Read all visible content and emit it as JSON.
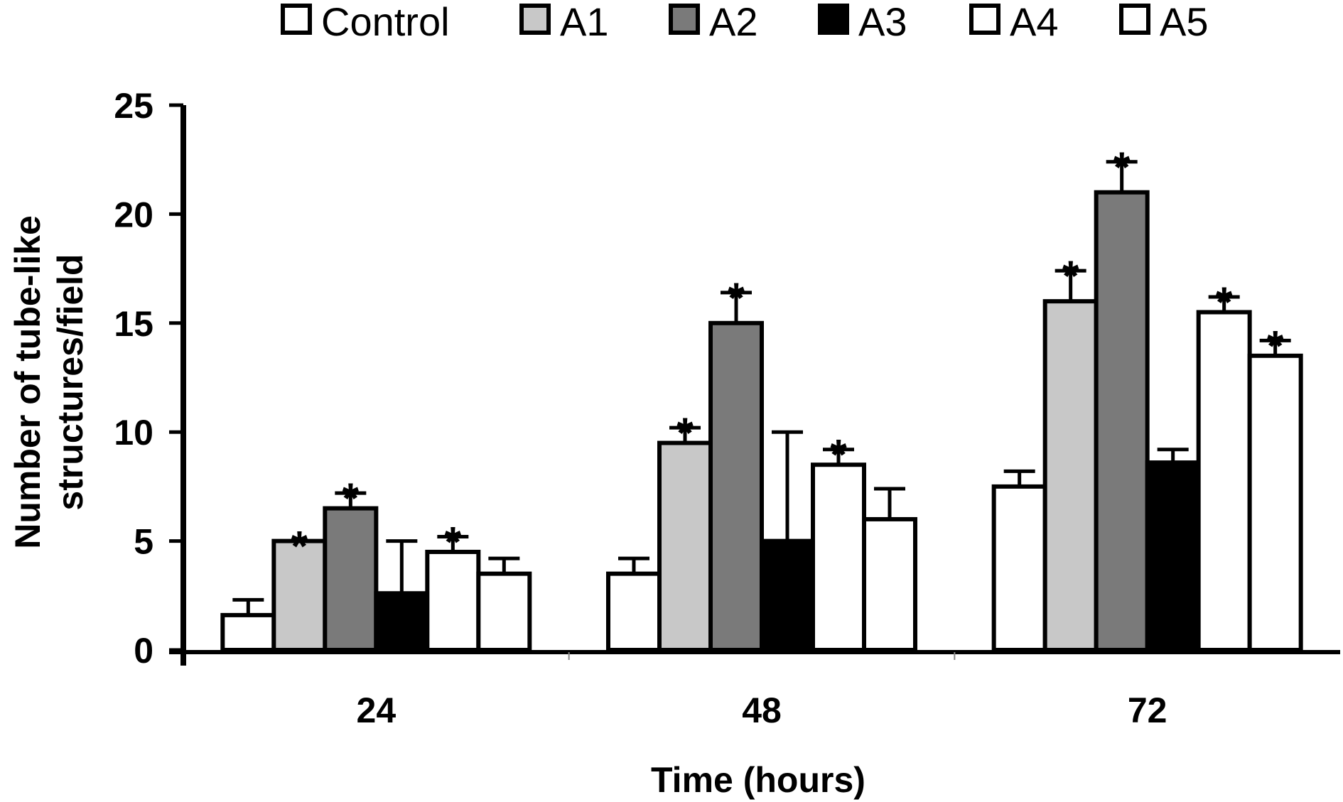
{
  "chart_data": {
    "type": "bar",
    "xlabel": "Time (hours)",
    "ylabel_lines": [
      "Number of tube-like",
      "structures/field"
    ],
    "categories": [
      "24",
      "48",
      "72"
    ],
    "ylim": [
      0,
      25
    ],
    "yticks": [
      0,
      5,
      10,
      15,
      20,
      25
    ],
    "legend_position": "top",
    "series": [
      {
        "name": "Control",
        "color": "#ffffff",
        "values": [
          1.6,
          3.5,
          7.5
        ],
        "errors": [
          0.7,
          0.7,
          0.7
        ],
        "significant": [
          false,
          false,
          false
        ]
      },
      {
        "name": "A1",
        "color": "#c8c8c8",
        "values": [
          5.0,
          9.5,
          16.0
        ],
        "errors": [
          0.0,
          0.7,
          1.4
        ],
        "significant": [
          true,
          true,
          true
        ]
      },
      {
        "name": "A2",
        "color": "#7a7a7a",
        "values": [
          6.5,
          15.0,
          21.0
        ],
        "errors": [
          0.7,
          1.4,
          1.4
        ],
        "significant": [
          true,
          true,
          true
        ]
      },
      {
        "name": "A3",
        "color": "#000000",
        "values": [
          2.6,
          5.0,
          8.6
        ],
        "errors": [
          2.4,
          5.0,
          0.6
        ],
        "significant": [
          false,
          false,
          false
        ]
      },
      {
        "name": "A4",
        "color": "#ffffff",
        "values": [
          4.5,
          8.5,
          15.5
        ],
        "errors": [
          0.7,
          0.7,
          0.7
        ],
        "significant": [
          true,
          true,
          true
        ]
      },
      {
        "name": "A5",
        "color": "#ffffff",
        "values": [
          3.5,
          6.0,
          13.5
        ],
        "errors": [
          0.7,
          1.4,
          0.7
        ],
        "significant": [
          false,
          false,
          true
        ]
      }
    ],
    "significance_marker": "*"
  }
}
